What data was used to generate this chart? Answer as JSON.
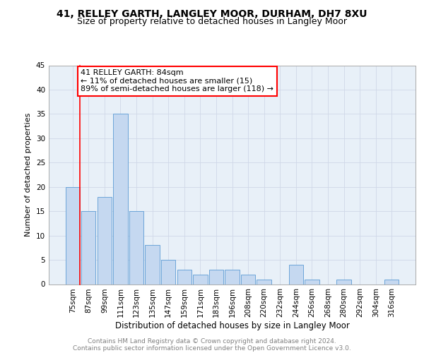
{
  "title1": "41, RELLEY GARTH, LANGLEY MOOR, DURHAM, DH7 8XU",
  "title2": "Size of property relative to detached houses in Langley Moor",
  "xlabel": "Distribution of detached houses by size in Langley Moor",
  "ylabel": "Number of detached properties",
  "categories": [
    "75sqm",
    "87sqm",
    "99sqm",
    "111sqm",
    "123sqm",
    "135sqm",
    "147sqm",
    "159sqm",
    "171sqm",
    "183sqm",
    "196sqm",
    "208sqm",
    "220sqm",
    "232sqm",
    "244sqm",
    "256sqm",
    "268sqm",
    "280sqm",
    "292sqm",
    "304sqm",
    "316sqm"
  ],
  "values": [
    20,
    15,
    18,
    35,
    15,
    8,
    5,
    3,
    2,
    3,
    3,
    2,
    1,
    0,
    4,
    1,
    0,
    1,
    0,
    0,
    1
  ],
  "bar_color": "#c5d8f0",
  "bar_edge_color": "#5b9bd5",
  "grid_color": "#d0d8e8",
  "background_color": "#e8f0f8",
  "annotation_box_text": "41 RELLEY GARTH: 84sqm\n← 11% of detached houses are smaller (15)\n89% of semi-detached houses are larger (118) →",
  "annotation_box_color": "white",
  "annotation_box_edge_color": "red",
  "ylim": [
    0,
    45
  ],
  "yticks": [
    0,
    5,
    10,
    15,
    20,
    25,
    30,
    35,
    40,
    45
  ],
  "footnote_line1": "Contains HM Land Registry data © Crown copyright and database right 2024.",
  "footnote_line2": "Contains public sector information licensed under the Open Government Licence v3.0.",
  "title1_fontsize": 10,
  "title2_fontsize": 9,
  "xlabel_fontsize": 8.5,
  "ylabel_fontsize": 8,
  "tick_fontsize": 7.5,
  "annotation_fontsize": 8,
  "footnote_fontsize": 6.5
}
